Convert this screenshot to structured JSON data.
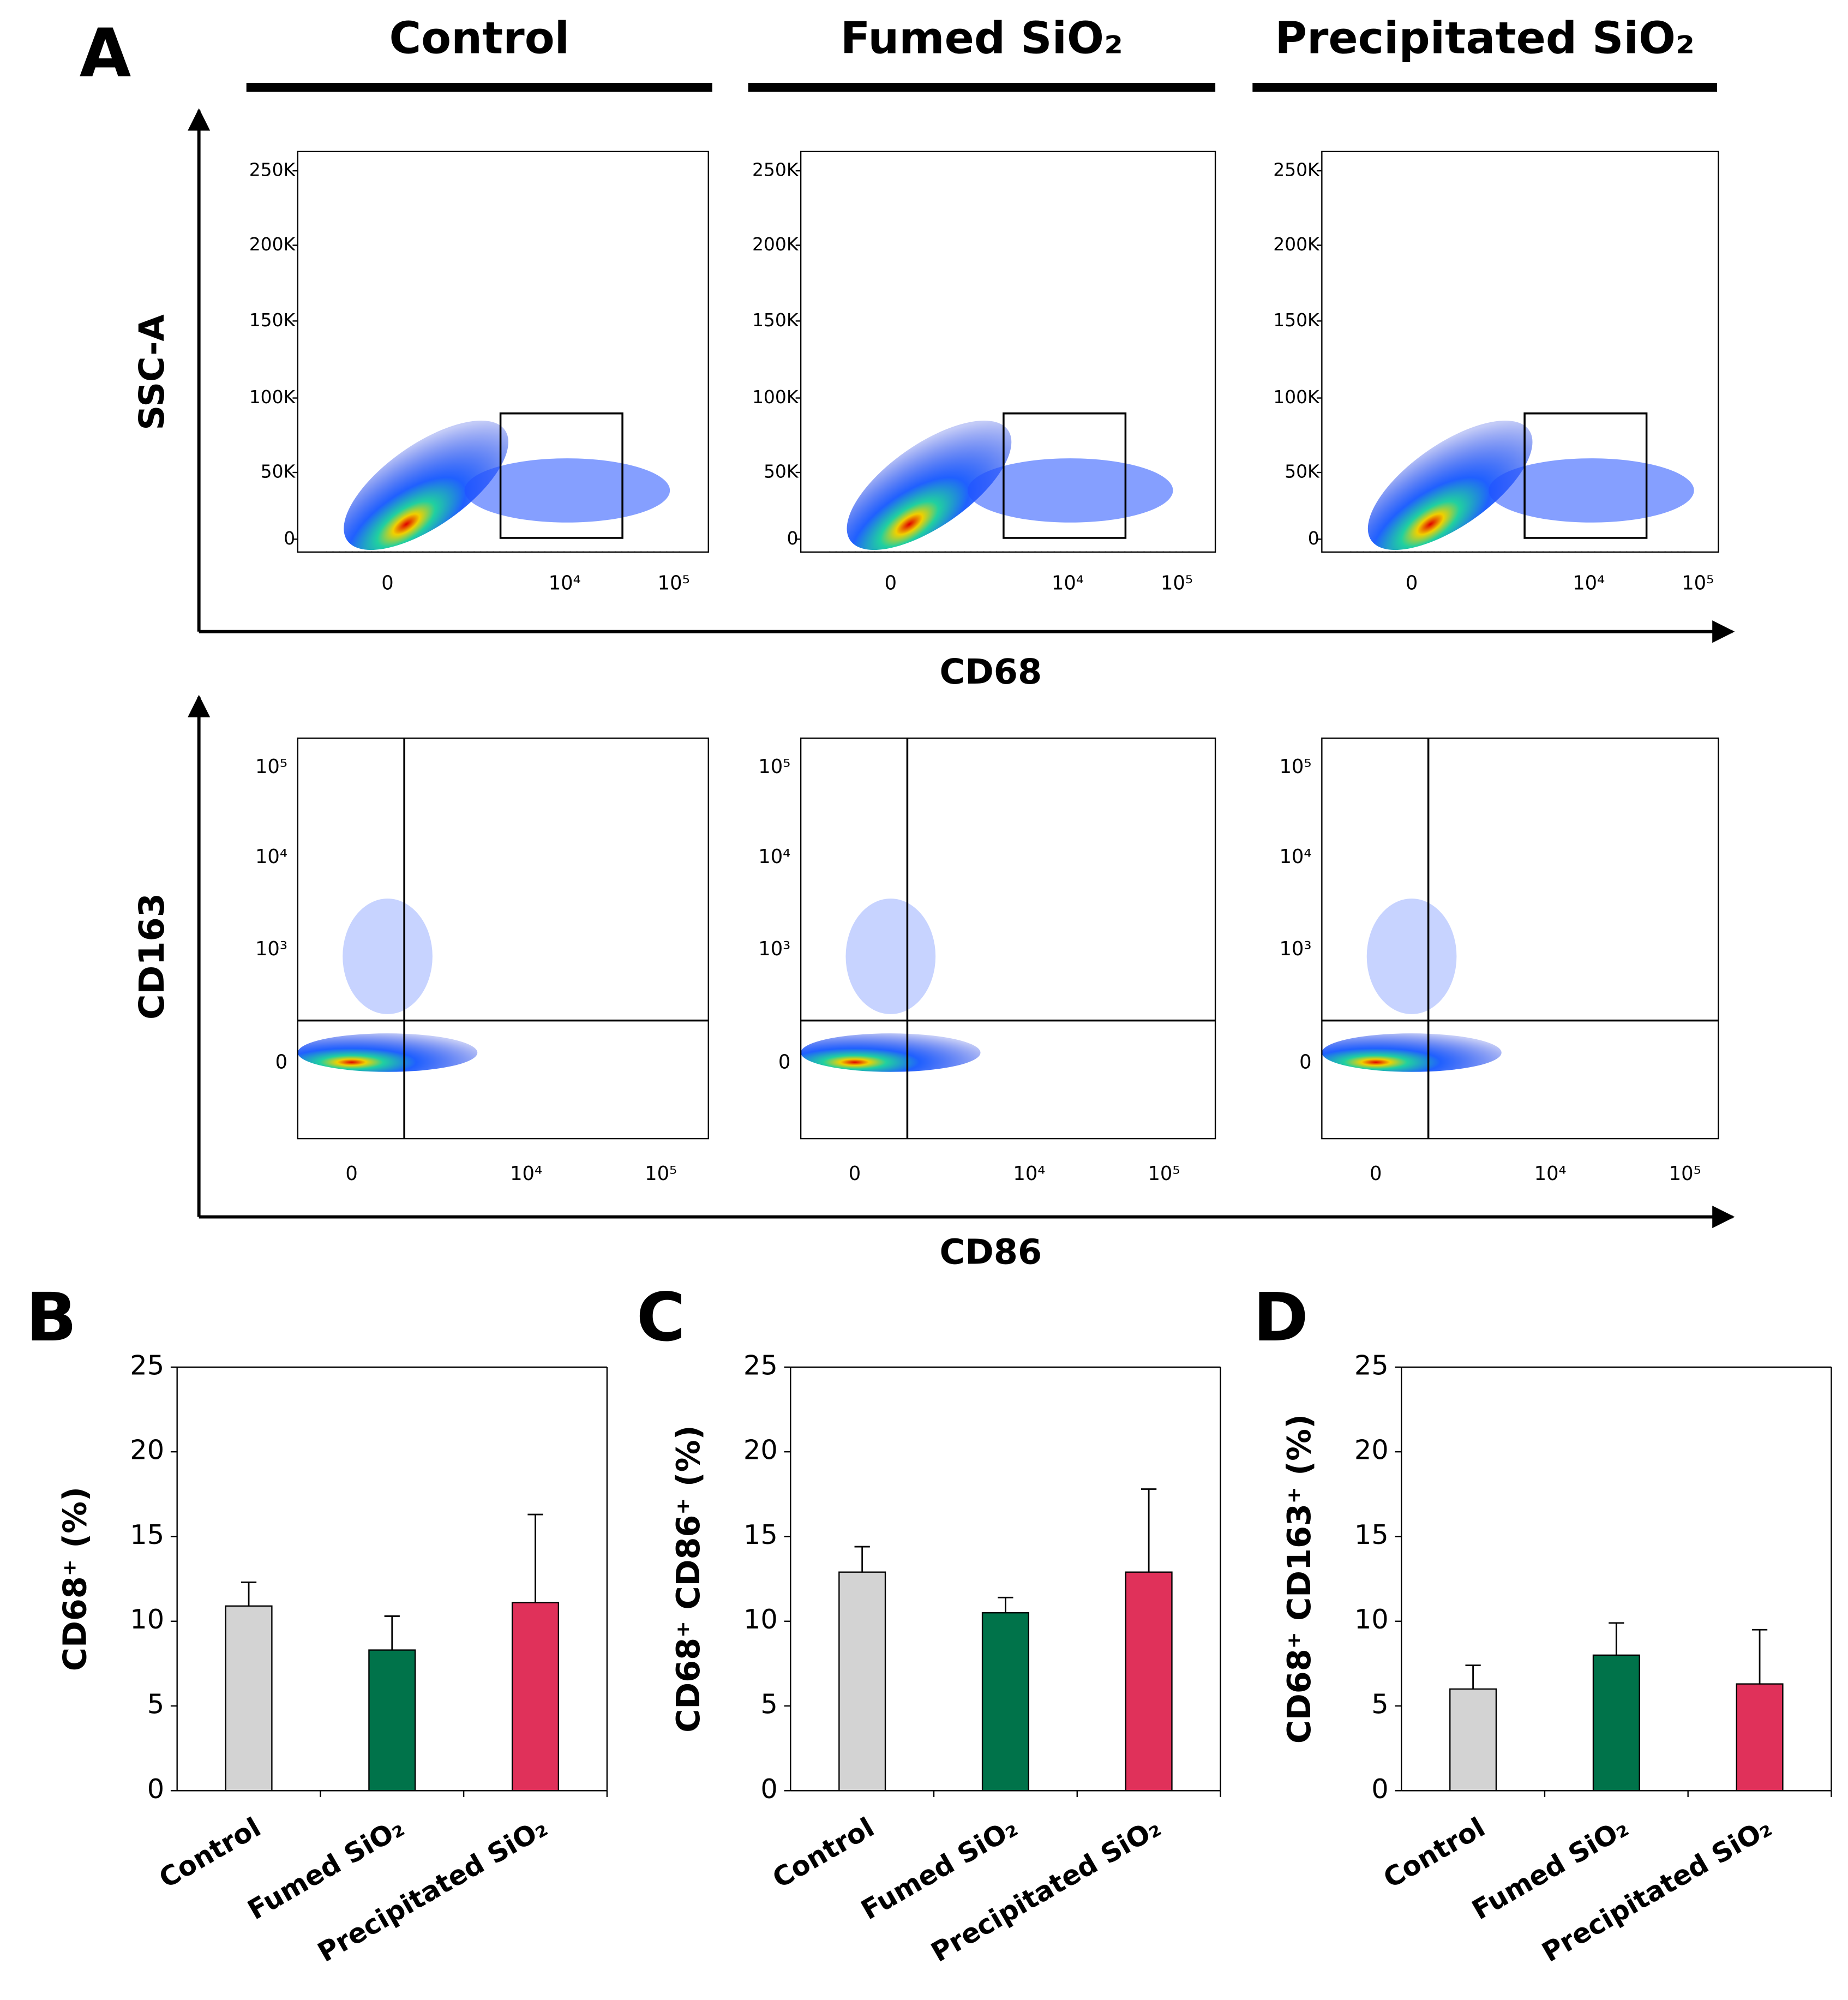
{
  "panels": {
    "a": "A",
    "b": "B",
    "c": "C",
    "d": "D"
  },
  "flow": {
    "groups": [
      "Control",
      "Fumed SiO₂",
      "Precipitated SiO₂"
    ],
    "top": {
      "ylabel": "SSC-A",
      "xlabel": "CD68",
      "yticks": [
        "250K",
        "200K",
        "150K",
        "100K",
        "50K",
        "0"
      ],
      "xticks": [
        "0",
        "10⁴",
        "10⁵"
      ]
    },
    "bottom": {
      "ylabel": "CD163",
      "xlabel": "CD86",
      "yticks": [
        "10⁵",
        "10⁴",
        "10³",
        "0"
      ],
      "xticks": [
        "0",
        "10⁴",
        "10⁵"
      ]
    }
  },
  "chart_data": [
    {
      "type": "bar",
      "ylabel": "CD68⁺ (%)",
      "categories": [
        "Control",
        "Fumed SiO₂",
        "Precipitated SiO₂"
      ],
      "values": [
        10.9,
        8.3,
        11.1
      ],
      "errors": [
        1.4,
        2.0,
        5.2
      ],
      "colors": [
        "#d3d3d3",
        "#00734a",
        "#e0315a"
      ],
      "ylim": [
        0,
        25
      ],
      "yticks": [
        0,
        5,
        10,
        15,
        20,
        25
      ]
    },
    {
      "type": "bar",
      "ylabel": "CD68⁺ CD86⁺ (%)",
      "categories": [
        "Control",
        "Fumed SiO₂",
        "Precipitated SiO₂"
      ],
      "values": [
        12.9,
        10.5,
        12.9
      ],
      "errors": [
        1.5,
        0.9,
        4.9
      ],
      "colors": [
        "#d3d3d3",
        "#00734a",
        "#e0315a"
      ],
      "ylim": [
        0,
        25
      ],
      "yticks": [
        0,
        5,
        10,
        15,
        20,
        25
      ]
    },
    {
      "type": "bar",
      "ylabel": "CD68⁺ CD163⁺ (%)",
      "categories": [
        "Control",
        "Fumed SiO₂",
        "Precipitated SiO₂"
      ],
      "values": [
        6.0,
        8.0,
        6.3
      ],
      "errors": [
        1.4,
        1.9,
        3.2
      ],
      "colors": [
        "#d3d3d3",
        "#00734a",
        "#e0315a"
      ],
      "ylim": [
        0,
        25
      ],
      "yticks": [
        0,
        5,
        10,
        15,
        20,
        25
      ]
    }
  ]
}
